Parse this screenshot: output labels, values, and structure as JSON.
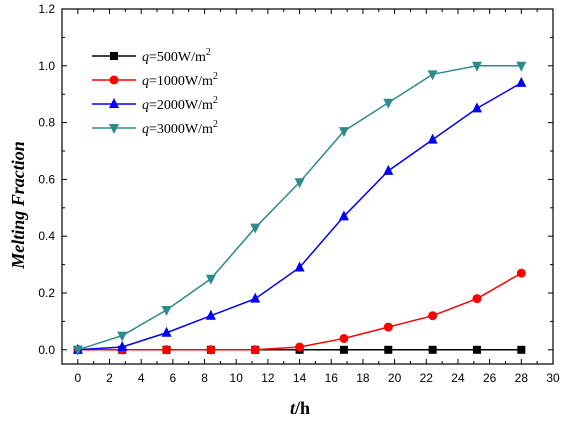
{
  "chart_data": {
    "type": "line",
    "title": "",
    "xlabel": {
      "italic": "t",
      "unit": "/h"
    },
    "ylabel": "Melting Fraction",
    "xlim": [
      -1,
      30
    ],
    "ylim": [
      -0.05,
      1.2
    ],
    "xticks": [
      0,
      2,
      4,
      6,
      8,
      10,
      12,
      14,
      16,
      18,
      20,
      22,
      24,
      26,
      28,
      30
    ],
    "yticks": [
      0.0,
      0.2,
      0.4,
      0.6,
      0.8,
      1.0,
      1.2
    ],
    "yticklabels": [
      "0.0",
      "0.2",
      "0.4",
      "0.6",
      "0.8",
      "1.0",
      "1.2"
    ],
    "x": [
      0,
      2.8,
      5.6,
      8.4,
      11.2,
      14.0,
      16.8,
      19.6,
      22.4,
      25.2,
      28.0
    ],
    "legend_position": "top-left",
    "series": [
      {
        "name": "q=500W/m2",
        "label_var": "q",
        "label_rest": "=500W/m",
        "label_sup": "2",
        "color": "#000000",
        "marker": "square",
        "values": [
          0,
          0,
          0,
          0,
          0,
          0,
          0,
          0,
          0,
          0,
          0
        ]
      },
      {
        "name": "q=1000W/m2",
        "label_var": "q",
        "label_rest": "=1000W/m",
        "label_sup": "2",
        "color": "#ff0000",
        "marker": "circle",
        "values": [
          0,
          0,
          0,
          0,
          0,
          0.01,
          0.04,
          0.08,
          0.12,
          0.18,
          0.27
        ]
      },
      {
        "name": "q=2000W/m2",
        "label_var": "q",
        "label_rest": "=2000W/m",
        "label_sup": "2",
        "color": "#0000ff",
        "marker": "triangle-up",
        "values": [
          0,
          0.01,
          0.06,
          0.12,
          0.18,
          0.29,
          0.47,
          0.63,
          0.74,
          0.85,
          0.94
        ]
      },
      {
        "name": "q=3000W/m2",
        "label_var": "q",
        "label_rest": "=3000W/m",
        "label_sup": "2",
        "color": "#2e8b8b",
        "marker": "triangle-down",
        "values": [
          0,
          0.05,
          0.14,
          0.25,
          0.43,
          0.59,
          0.77,
          0.87,
          0.97,
          1.0,
          1.0
        ]
      }
    ]
  }
}
